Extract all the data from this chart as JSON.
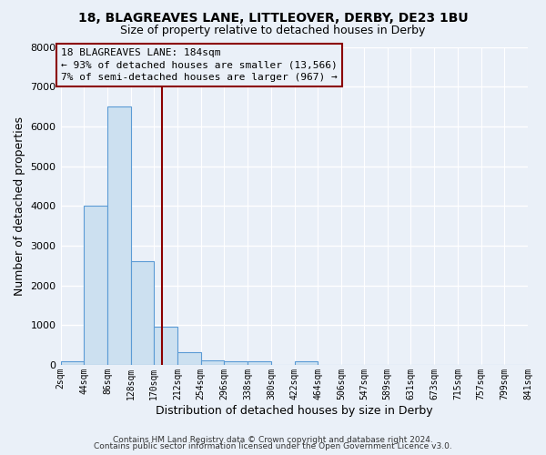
{
  "title1": "18, BLAGREAVES LANE, LITTLEOVER, DERBY, DE23 1BU",
  "title2": "Size of property relative to detached houses in Derby",
  "xlabel": "Distribution of detached houses by size in Derby",
  "ylabel": "Number of detached properties",
  "annotation_line1": "18 BLAGREAVES LANE: 184sqm",
  "annotation_line2": "← 93% of detached houses are smaller (13,566)",
  "annotation_line3": "7% of semi-detached houses are larger (967) →",
  "bar_edges": [
    2,
    44,
    86,
    128,
    170,
    212,
    254,
    296,
    338,
    380,
    422,
    464,
    506,
    547,
    589,
    631,
    673,
    715,
    757,
    799,
    841
  ],
  "bar_heights": [
    100,
    4000,
    6500,
    2600,
    960,
    320,
    120,
    90,
    90,
    0,
    90,
    0,
    0,
    0,
    0,
    0,
    0,
    0,
    0,
    0
  ],
  "bar_color": "#cce0f0",
  "bar_edge_color": "#5b9bd5",
  "red_line_x": 184,
  "ylim": [
    0,
    8000
  ],
  "tick_labels": [
    "2sqm",
    "44sqm",
    "86sqm",
    "128sqm",
    "170sqm",
    "212sqm",
    "254sqm",
    "296sqm",
    "338sqm",
    "380sqm",
    "422sqm",
    "464sqm",
    "506sqm",
    "547sqm",
    "589sqm",
    "631sqm",
    "673sqm",
    "715sqm",
    "757sqm",
    "799sqm",
    "841sqm"
  ],
  "background_color": "#eaf0f8",
  "grid_color": "#ffffff",
  "annotation_bg": "#eaf0f8",
  "footer_line1": "Contains HM Land Registry data © Crown copyright and database right 2024.",
  "footer_line2": "Contains public sector information licensed under the Open Government Licence v3.0."
}
